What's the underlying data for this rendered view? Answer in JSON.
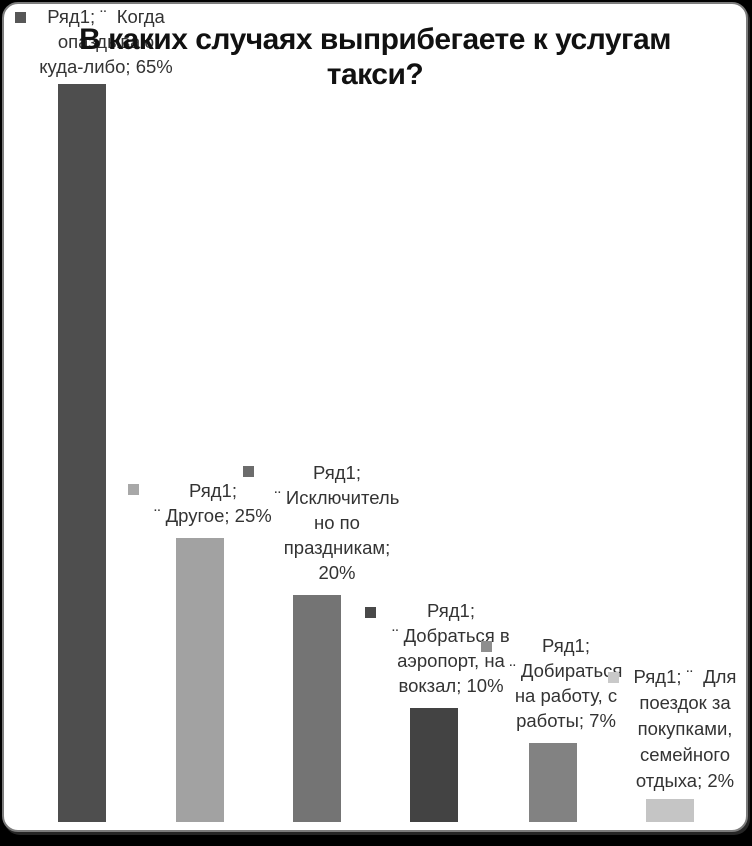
{
  "window": {
    "background": "#000000",
    "panel_color": "#ffffff",
    "panel_border_color": "#7c7c7c"
  },
  "title_display": "В каких случаях выприбегаете к услугам\nтакси?",
  "chart_data": {
    "type": "bar",
    "title": "В каких случаях выприбегаете к услугам такси?",
    "series_name": "Ряд1",
    "categories": [
      "Когда опаздываю куда-либо",
      "Другое",
      "Исключительно по праздникам",
      "Добраться в аэропорт, на вокзал",
      "Добираться на работу, с работы",
      "Для поездок за покупками, семейного отдыха"
    ],
    "values": [
      65,
      25,
      20,
      10,
      7,
      2
    ],
    "unit": "%",
    "ylim": [
      0,
      65
    ],
    "axes_visible": false,
    "grid": false,
    "legend_position": "none",
    "bar_colors": [
      "#4e4e4e",
      "#a2a2a2",
      "#747474",
      "#434343",
      "#828282",
      "#c5c5c5"
    ],
    "marker_colors": [
      "#575757",
      "#a8a8a8",
      "#6c6c6c",
      "#494949",
      "#8e8e8e",
      "#c9c9c9"
    ]
  },
  "labels": [
    {
      "lines": "Ряд1; ¨  Когда\nопаздываю\nкуда-либо; 65%"
    },
    {
      "lines": "Ряд1;\n¨ Другое; 25%"
    },
    {
      "lines": "Ряд1;\n¨ Исключитель\nно по\nпраздникам;\n20%"
    },
    {
      "lines": "Ряд1;\n¨ Добраться в\nаэропорт, на\nвокзал; 10%"
    },
    {
      "lines": "Ряд1;\n¨ Добираться\nна работу, с\nработы; 7%"
    },
    {
      "lines": "Ряд1; ¨  Для\nпоездок за\nпокупками,\nсемейного\nотдыха; 2%"
    }
  ]
}
